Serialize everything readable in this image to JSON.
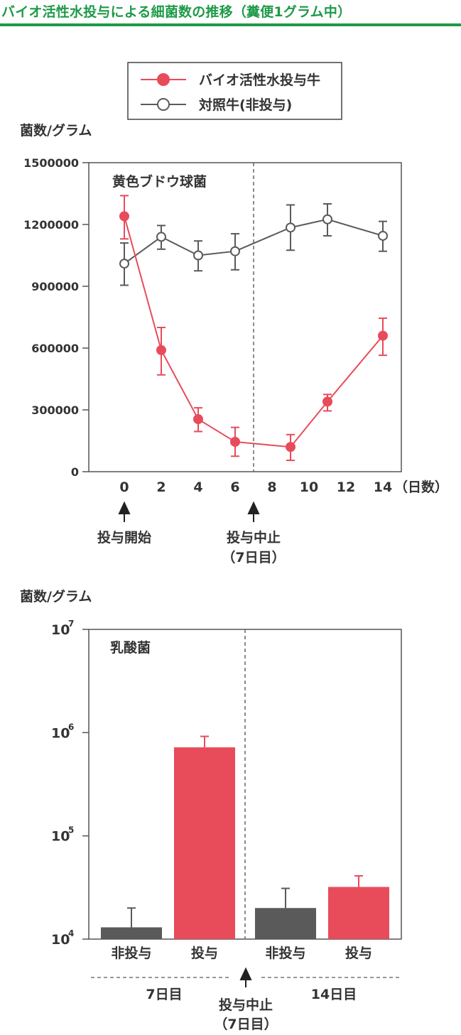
{
  "header": {
    "title": "バイオ活性水投与による細菌数の推移（糞便1グラム中）"
  },
  "colors": {
    "header_green": "#1e9a48",
    "treated_red": "#e84b5a",
    "control_gray": "#5a5a5a",
    "axis": "#555555"
  },
  "legend": {
    "treated": "バイオ活性水投与牛",
    "control": "対照牛(非投与)"
  },
  "chart_data": [
    {
      "type": "line",
      "title": "黄色ブドウ球菌",
      "ylabel": "菌数/グラム",
      "xlabel": "（日数）",
      "ylim": [
        0,
        1500000
      ],
      "y_ticks": [
        "1500000",
        "1200000",
        "900000",
        "600000",
        "300000",
        "0"
      ],
      "x_ticks": [
        "0",
        "2",
        "4",
        "6",
        "8",
        "10",
        "12",
        "14"
      ],
      "xlim": [
        -2,
        15
      ],
      "divider_x": 7,
      "series": [
        {
          "name": "バイオ活性水投与牛",
          "points": [
            {
              "x": 0,
              "y": 1240000,
              "lo": 1130000,
              "hi": 1340000
            },
            {
              "x": 2,
              "y": 590000,
              "lo": 470000,
              "hi": 700000
            },
            {
              "x": 4,
              "y": 255000,
              "lo": 195000,
              "hi": 310000
            },
            {
              "x": 6,
              "y": 145000,
              "lo": 75000,
              "hi": 215000
            },
            {
              "x": 9,
              "y": 120000,
              "lo": 55000,
              "hi": 180000
            },
            {
              "x": 11,
              "y": 340000,
              "lo": 295000,
              "hi": 375000
            },
            {
              "x": 14,
              "y": 660000,
              "lo": 565000,
              "hi": 745000
            }
          ]
        },
        {
          "name": "対照牛(非投与)",
          "points": [
            {
              "x": 0,
              "y": 1010000,
              "lo": 905000,
              "hi": 1110000
            },
            {
              "x": 2,
              "y": 1140000,
              "lo": 1080000,
              "hi": 1195000
            },
            {
              "x": 4,
              "y": 1050000,
              "lo": 975000,
              "hi": 1120000
            },
            {
              "x": 6,
              "y": 1070000,
              "lo": 980000,
              "hi": 1155000
            },
            {
              "x": 9,
              "y": 1185000,
              "lo": 1075000,
              "hi": 1295000
            },
            {
              "x": 11,
              "y": 1225000,
              "lo": 1145000,
              "hi": 1300000
            },
            {
              "x": 14,
              "y": 1145000,
              "lo": 1070000,
              "hi": 1215000
            }
          ]
        }
      ],
      "annotations": [
        {
          "x": 0,
          "text": "投与開始"
        },
        {
          "x": 7,
          "text": "投与中止",
          "subtext": "（7日目）"
        }
      ]
    },
    {
      "type": "bar",
      "title": "乳酸菌",
      "ylabel": "菌数/グラム",
      "y_scale": "log",
      "ylim": [
        10000,
        10000000
      ],
      "y_ticks": [
        {
          "value": 10000000,
          "base": "10",
          "exp": "7"
        },
        {
          "value": 1000000,
          "base": "10",
          "exp": "6"
        },
        {
          "value": 100000,
          "base": "10",
          "exp": "5"
        },
        {
          "value": 10000,
          "base": "10",
          "exp": "4"
        }
      ],
      "bars": [
        {
          "label": "非投与",
          "value": 13000,
          "err_hi": 20000,
          "color": "#5a5a5a"
        },
        {
          "label": "投与",
          "value": 720000,
          "err_hi": 920000,
          "color": "#e84b5a"
        },
        {
          "label": "非投与",
          "value": 20000,
          "err_hi": 31000,
          "color": "#5a5a5a"
        },
        {
          "label": "投与",
          "value": 32000,
          "err_hi": 41000,
          "color": "#e84b5a"
        }
      ],
      "groups": [
        "7日目",
        "14日目"
      ],
      "annotation": {
        "text": "投与中止",
        "subtext": "（7日目）"
      }
    }
  ]
}
